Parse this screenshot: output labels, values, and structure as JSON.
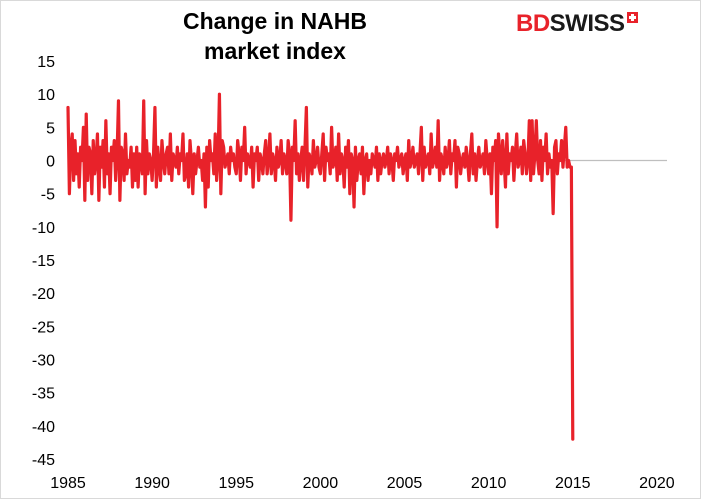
{
  "header": {
    "title_line1": "Change in NAHB",
    "title_line2": "market index",
    "logo_bd": "BD",
    "logo_swiss": "SWISS"
  },
  "colors": {
    "series": "#e8222a",
    "zero_line": "#bfbfbf",
    "background": "#ffffff"
  },
  "chart_data": {
    "type": "line",
    "title": "Change in NAHB market index",
    "xlabel": "",
    "ylabel": "",
    "xlim": [
      1985,
      2020.6
    ],
    "ylim": [
      -45,
      15
    ],
    "y_ticks": [
      15,
      10,
      5,
      0,
      -5,
      -10,
      -15,
      -20,
      -25,
      -30,
      -35,
      -40,
      -45
    ],
    "x_ticks": [
      1985,
      1990,
      1995,
      2000,
      2005,
      2010,
      2015,
      2020
    ],
    "grid": false,
    "legend": "none",
    "series": [
      {
        "start": "1985-01",
        "frequency": "monthly",
        "values": [
          8,
          -5,
          2,
          4,
          -3,
          3,
          -2,
          1,
          -4,
          2,
          0,
          5,
          -6,
          7,
          -3,
          2,
          1,
          -5,
          3,
          -2,
          0,
          4,
          -6,
          2,
          -1,
          3,
          -4,
          6,
          -2,
          1,
          -5,
          2,
          0,
          3,
          -3,
          1,
          9,
          -6,
          2,
          1,
          -3,
          4,
          -2,
          0,
          -1,
          2,
          -4,
          1,
          -3,
          2,
          -4,
          1,
          0,
          -2,
          9,
          -5,
          3,
          -2,
          1,
          0,
          -3,
          1,
          8,
          -4,
          2,
          -1,
          -3,
          3,
          0,
          -2,
          1,
          2,
          -2,
          4,
          -3,
          1,
          0,
          -1,
          2,
          -2,
          1,
          0,
          4,
          -3,
          -2,
          1,
          -4,
          3,
          0,
          -5,
          1,
          -2,
          0,
          2,
          -1,
          0,
          -3,
          1,
          -7,
          2,
          -4,
          3,
          0,
          1,
          -2,
          4,
          -3,
          0,
          10,
          -5,
          3,
          2,
          -1,
          0,
          1,
          -2,
          2,
          0,
          1,
          -1,
          -2,
          3,
          1,
          -3,
          2,
          0,
          5,
          -2,
          1,
          0,
          -1,
          2,
          -4,
          1,
          0,
          2,
          -3,
          1,
          0,
          -2,
          1,
          3,
          -2,
          0,
          4,
          -2,
          1,
          0,
          -3,
          2,
          -1,
          0,
          3,
          -2,
          1,
          0,
          -2,
          3,
          1,
          -9,
          2,
          0,
          6,
          -2,
          1,
          -3,
          0,
          2,
          -3,
          2,
          8,
          -4,
          1,
          0,
          -2,
          3,
          -1,
          0,
          2,
          -1,
          -2,
          1,
          4,
          -3,
          2,
          0,
          1,
          -2,
          5,
          -1,
          0,
          2,
          -3,
          4,
          -2,
          1,
          0,
          -4,
          2,
          -1,
          3,
          -5,
          1,
          0,
          -7,
          2,
          -3,
          0,
          1,
          -2,
          2,
          -5,
          0,
          1,
          -3,
          0,
          -2,
          1,
          0,
          -1,
          2,
          -3,
          1,
          -2,
          0,
          1,
          -1,
          0,
          2,
          -2,
          1,
          0,
          -3,
          1,
          0,
          2,
          -1,
          0,
          1,
          -2,
          0,
          1,
          -3,
          3,
          -1,
          0,
          2,
          -1,
          0,
          1,
          -2,
          1,
          5,
          -3,
          2,
          -1,
          0,
          1,
          -2,
          4,
          -1,
          0,
          2,
          -1,
          6,
          -3,
          1,
          0,
          -2,
          2,
          -1,
          0,
          3,
          -2,
          1,
          0,
          3,
          -4,
          2,
          1,
          -2,
          0,
          1,
          -1,
          2,
          0,
          -3,
          1,
          4,
          -2,
          1,
          -3,
          0,
          2,
          -1,
          0,
          1,
          -2,
          3,
          0,
          -2,
          1,
          -5,
          2,
          0,
          3,
          -10,
          4,
          1,
          -2,
          3,
          0,
          -4,
          4,
          -2,
          1,
          0,
          2,
          -3,
          1,
          4,
          -1,
          0,
          2,
          -2,
          3,
          1,
          -2,
          0,
          6,
          -3,
          6,
          -2,
          1,
          6,
          0,
          -2,
          3,
          -3,
          2,
          0,
          4,
          -2,
          1,
          -1,
          0,
          -8,
          2,
          3,
          -2,
          1,
          0,
          3,
          -1,
          2,
          5,
          -1,
          0,
          -1,
          -1,
          -42
        ]
      }
    ]
  }
}
